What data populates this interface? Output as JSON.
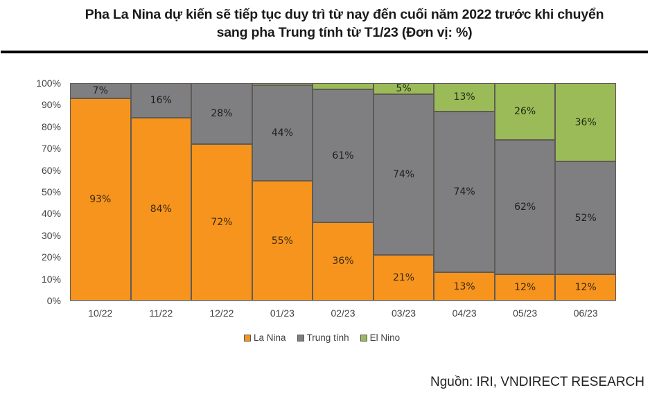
{
  "header": {
    "title_line1": "Pha La Nina dự kiến sẽ tiếp tục duy trì từ nay đến cuối năm 2022 trước khi chuyển",
    "title_line2": "sang pha Trung tính từ T1/23 (Đơn vị: %)"
  },
  "footer": {
    "source": "Nguồn: IRI, VNDIRECT RESEARCH"
  },
  "colors": {
    "la_nina": "#f7941d",
    "trung_tinh": "#7f7f82",
    "el_nino": "#9bbb59"
  },
  "legend": [
    {
      "label": "La Nina",
      "color": "#f7941d"
    },
    {
      "label": "Trung tính",
      "color": "#7f7f82"
    },
    {
      "label": "El Nino",
      "color": "#9bbb59"
    }
  ],
  "y_ticks": [
    "0%",
    "10%",
    "20%",
    "30%",
    "40%",
    "50%",
    "60%",
    "70%",
    "80%",
    "90%",
    "100%"
  ],
  "chart_data": {
    "type": "bar",
    "stacked": true,
    "percent_stacked": true,
    "title": "Pha La Nina dự kiến sẽ tiếp tục duy trì từ nay đến cuối năm 2022 trước khi chuyển sang pha Trung tính từ T1/23 (Đơn vị: %)",
    "xlabel": "",
    "ylabel": "",
    "ylim": [
      0,
      100
    ],
    "y_tick_labels": [
      "0%",
      "10%",
      "20%",
      "30%",
      "40%",
      "50%",
      "60%",
      "70%",
      "80%",
      "90%",
      "100%"
    ],
    "grid": false,
    "legend_position": "bottom",
    "categories": [
      "10/22",
      "11/22",
      "12/22",
      "01/23",
      "02/23",
      "03/23",
      "04/23",
      "05/23",
      "06/23"
    ],
    "series": [
      {
        "name": "La Nina",
        "color": "#f7941d",
        "values": [
          93,
          84,
          72,
          55,
          36,
          21,
          13,
          12,
          12
        ],
        "labels": [
          "93%",
          "84%",
          "72%",
          "55%",
          "36%",
          "21%",
          "13%",
          "12%",
          "12%"
        ]
      },
      {
        "name": "Trung tính",
        "color": "#7f7f82",
        "values": [
          7,
          16,
          28,
          44,
          61,
          74,
          74,
          62,
          52
        ],
        "labels": [
          "7%",
          "16%",
          "28%",
          "44%",
          "61%",
          "74%",
          "74%",
          "62%",
          "52%"
        ]
      },
      {
        "name": "El Nino",
        "color": "#9bbb59",
        "values": [
          0,
          0,
          0,
          1,
          3,
          5,
          13,
          26,
          36
        ],
        "labels": [
          "",
          "",
          "",
          "",
          "",
          "5%",
          "13%",
          "26%",
          "36%"
        ]
      }
    ],
    "source": "Nguồn: IRI, VNDIRECT RESEARCH"
  }
}
